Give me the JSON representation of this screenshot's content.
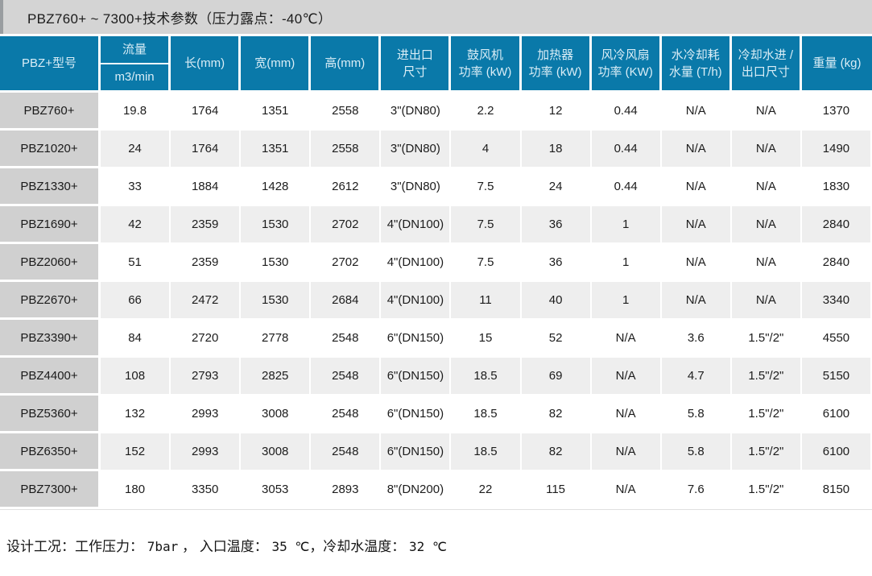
{
  "title": "PBZ760+ ~ 7300+技术参数（压力露点：-40℃）",
  "colors": {
    "header_bg": "#0a79a9",
    "header_text": "#d9edf6",
    "title_bar_bg": "#d4d4d4",
    "model_cell_bg": "#d0d0d0",
    "row_alt_bg": "#eeeeee"
  },
  "table": {
    "columns": [
      {
        "id": "model",
        "lines": [
          "PBZ+型号"
        ]
      },
      {
        "id": "flow",
        "lines": [
          "流量",
          "m3/min"
        ],
        "divider": true
      },
      {
        "id": "length",
        "lines": [
          "长(mm)"
        ]
      },
      {
        "id": "width",
        "lines": [
          "宽(mm)"
        ]
      },
      {
        "id": "height",
        "lines": [
          "高(mm)"
        ]
      },
      {
        "id": "inlet-outlet-size",
        "lines": [
          "进出口",
          "尺寸"
        ]
      },
      {
        "id": "blower-power",
        "lines": [
          "鼓风机",
          "功率 (kW)"
        ]
      },
      {
        "id": "heater-power",
        "lines": [
          "加热器",
          "功率 (kW)"
        ]
      },
      {
        "id": "fan-power",
        "lines": [
          "风冷风扇",
          "功率 (KW)"
        ]
      },
      {
        "id": "water-consumption",
        "lines": [
          "水冷却耗",
          "水量 (T/h)"
        ]
      },
      {
        "id": "cooling-water-size",
        "lines": [
          "冷却水进 /",
          "出口尺寸"
        ]
      },
      {
        "id": "weight",
        "lines": [
          "重量 (kg)"
        ]
      }
    ],
    "rows": [
      [
        "PBZ760+",
        "19.8",
        "1764",
        "1351",
        "2558",
        "3\"(DN80)",
        "2.2",
        "12",
        "0.44",
        "N/A",
        "N/A",
        "1370"
      ],
      [
        "PBZ1020+",
        "24",
        "1764",
        "1351",
        "2558",
        "3\"(DN80)",
        "4",
        "18",
        "0.44",
        "N/A",
        "N/A",
        "1490"
      ],
      [
        "PBZ1330+",
        "33",
        "1884",
        "1428",
        "2612",
        "3\"(DN80)",
        "7.5",
        "24",
        "0.44",
        "N/A",
        "N/A",
        "1830"
      ],
      [
        "PBZ1690+",
        "42",
        "2359",
        "1530",
        "2702",
        "4\"(DN100)",
        "7.5",
        "36",
        "1",
        "N/A",
        "N/A",
        "2840"
      ],
      [
        "PBZ2060+",
        "51",
        "2359",
        "1530",
        "2702",
        "4\"(DN100)",
        "7.5",
        "36",
        "1",
        "N/A",
        "N/A",
        "2840"
      ],
      [
        "PBZ2670+",
        "66",
        "2472",
        "1530",
        "2684",
        "4\"(DN100)",
        "11",
        "40",
        "1",
        "N/A",
        "N/A",
        "3340"
      ],
      [
        "PBZ3390+",
        "84",
        "2720",
        "2778",
        "2548",
        "6\"(DN150)",
        "15",
        "52",
        "N/A",
        "3.6",
        "1.5\"/2\"",
        "4550"
      ],
      [
        "PBZ4400+",
        "108",
        "2793",
        "2825",
        "2548",
        "6\"(DN150)",
        "18.5",
        "69",
        "N/A",
        "4.7",
        "1.5\"/2\"",
        "5150"
      ],
      [
        "PBZ5360+",
        "132",
        "2993",
        "3008",
        "2548",
        "6\"(DN150)",
        "18.5",
        "82",
        "N/A",
        "5.8",
        "1.5\"/2\"",
        "6100"
      ],
      [
        "PBZ6350+",
        "152",
        "2993",
        "3008",
        "2548",
        "6\"(DN150)",
        "18.5",
        "82",
        "N/A",
        "5.8",
        "1.5\"/2\"",
        "6100"
      ],
      [
        "PBZ7300+",
        "180",
        "3350",
        "3053",
        "2893",
        "8\"(DN200)",
        "22",
        "115",
        "N/A",
        "7.6",
        "1.5\"/2\"",
        "8150"
      ]
    ]
  },
  "footer": {
    "segments": [
      {
        "text": "设计工况：工作压力： ",
        "style": "cn"
      },
      {
        "text": "7bar",
        "style": "num"
      },
      {
        "text": " ， 入口温度： ",
        "style": "cn"
      },
      {
        "text": "35 ℃",
        "style": "num"
      },
      {
        "text": "，冷却水温度： ",
        "style": "cn"
      },
      {
        "text": "32 ℃",
        "style": "num"
      }
    ]
  }
}
